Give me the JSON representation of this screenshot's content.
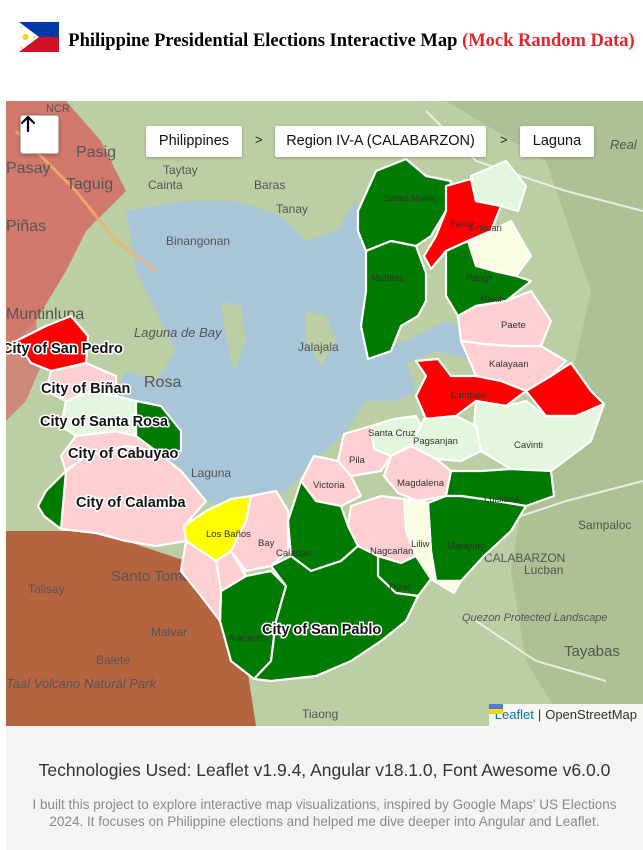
{
  "header": {
    "title": "Philippine Presidential Elections Interactive Map",
    "mock_note": "(Mock Random Data)"
  },
  "breadcrumb": [
    "Philippines",
    "Region IV-A (CALABARZON)",
    "Laguna"
  ],
  "breadcrumb_separator": ">",
  "back_button_icon": "arrow-up-icon",
  "attribution": {
    "leaflet": "Leaflet",
    "separator": "|",
    "osm": "OpenStreetMap"
  },
  "footer": {
    "technologies": "Technologies Used: Leaflet v1.9.4, Angular v18.1.0, Font Awesome v6.0.0",
    "about": "I built this project to explore interactive map visualizations, inspired by Google Maps' US Elections 2024. It focuses on Philippine elections and helped me dive deeper into Angular and Leaflet."
  },
  "colors": {
    "dark_green": "#007a00",
    "light_green": "#e2f7de",
    "pale_yellow": "#fbfde3",
    "pink": "#ffcfd2",
    "red": "#fe0000",
    "yellow": "#fffd00",
    "lake": "#a9c5d8",
    "title_red": "#e3262b"
  },
  "bg_labels": [
    "NCR",
    "Pasig",
    "Pasay",
    "Taguig",
    "Piñas",
    "Cainta",
    "Taytay",
    "Baras",
    "Tanay",
    "Binangonan",
    "Muntinlupa",
    "Laguna de Bay",
    "Jalajala",
    "Rosa",
    "Laguna",
    "Santo Tomas",
    "Talisay",
    "Malvar",
    "Balete",
    "Taal Volcano Natural Park",
    "Real",
    "Sampaloc",
    "Lucban",
    "CALABARZON",
    "Quezon Protected Landscape",
    "Tayabas",
    "Tiaong"
  ],
  "municipalities_small": [
    "Santa Maria",
    "Siniloan",
    "Famy",
    "Mabitac",
    "Pangil",
    "Pakil",
    "Paete",
    "Kalayaan",
    "Lumban",
    "Cavinti",
    "Santa Cruz",
    "Pagsanjan",
    "Pila",
    "Victoria",
    "Magdalena",
    "Luisiana",
    "Majayjay",
    "Liliw",
    "Nagcarlan",
    "Rizal",
    "Calauan",
    "Bay",
    "Los Baños",
    "Alaminos"
  ],
  "cities": [
    "City of San Pedro",
    "City of Biñan",
    "City of Santa Rosa",
    "City of Cabuyao",
    "City of Calamba",
    "City of San Pablo"
  ]
}
